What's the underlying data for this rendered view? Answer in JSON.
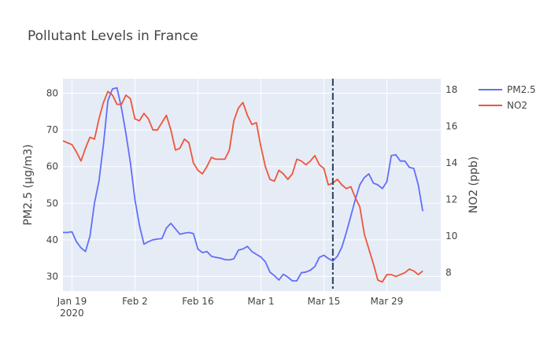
{
  "chart_data": {
    "type": "line",
    "title": "Pollutant Levels in France",
    "x_year_label": "2020",
    "x_ticks": [
      {
        "date": "2020-01-19",
        "label": "Jan 19"
      },
      {
        "date": "2020-02-02",
        "label": "Feb 2"
      },
      {
        "date": "2020-02-16",
        "label": "Feb 16"
      },
      {
        "date": "2020-03-01",
        "label": "Mar 1"
      },
      {
        "date": "2020-03-15",
        "label": "Mar 15"
      },
      {
        "date": "2020-03-29",
        "label": "Mar 29"
      }
    ],
    "x_range": [
      "2020-01-17",
      "2020-04-10"
    ],
    "y_left": {
      "label": "PM2.5 (μg/m3)",
      "range": [
        26,
        84
      ],
      "ticks": [
        30,
        40,
        50,
        60,
        70,
        80
      ]
    },
    "y_right": {
      "label": "NO2 (ppb)",
      "range": [
        7,
        18.6
      ],
      "ticks": [
        8,
        10,
        12,
        14,
        16,
        18
      ]
    },
    "vline": {
      "date": "2020-03-17",
      "style": "dashdot",
      "color": "#2a3f5f"
    },
    "grid": true,
    "legend_position": "top-right",
    "series": [
      {
        "name": "PM2.5",
        "axis": "left",
        "color": "#636efa",
        "x": [
          "2020-01-17",
          "2020-01-18",
          "2020-01-19",
          "2020-01-20",
          "2020-01-21",
          "2020-01-22",
          "2020-01-23",
          "2020-01-24",
          "2020-01-25",
          "2020-01-26",
          "2020-01-27",
          "2020-01-28",
          "2020-01-29",
          "2020-01-30",
          "2020-01-31",
          "2020-02-01",
          "2020-02-02",
          "2020-02-03",
          "2020-02-04",
          "2020-02-05",
          "2020-02-06",
          "2020-02-07",
          "2020-02-08",
          "2020-02-09",
          "2020-02-10",
          "2020-02-11",
          "2020-02-12",
          "2020-02-13",
          "2020-02-14",
          "2020-02-15",
          "2020-02-16",
          "2020-02-17",
          "2020-02-18",
          "2020-02-19",
          "2020-02-20",
          "2020-02-21",
          "2020-02-22",
          "2020-02-23",
          "2020-02-24",
          "2020-02-25",
          "2020-02-26",
          "2020-02-27",
          "2020-02-28",
          "2020-02-29",
          "2020-03-01",
          "2020-03-02",
          "2020-03-03",
          "2020-03-04",
          "2020-03-05",
          "2020-03-06",
          "2020-03-07",
          "2020-03-08",
          "2020-03-09",
          "2020-03-10",
          "2020-03-11",
          "2020-03-12",
          "2020-03-13",
          "2020-03-14",
          "2020-03-15",
          "2020-03-16",
          "2020-03-17",
          "2020-03-18",
          "2020-03-19",
          "2020-03-20",
          "2020-03-21",
          "2020-03-22",
          "2020-03-23",
          "2020-03-24",
          "2020-03-25",
          "2020-03-26",
          "2020-03-27",
          "2020-03-28",
          "2020-03-29",
          "2020-03-30",
          "2020-03-31",
          "2020-04-01",
          "2020-04-02",
          "2020-04-03",
          "2020-04-04",
          "2020-04-05",
          "2020-04-06"
        ],
        "values": [
          42,
          42,
          42.2,
          39.5,
          37.8,
          36.8,
          41,
          50,
          56,
          66,
          78,
          81.2,
          81.5,
          76,
          69,
          61,
          51,
          44,
          38.8,
          39.5,
          40,
          40.2,
          40.3,
          43.2,
          44.5,
          43,
          41.5,
          41.8,
          42,
          41.7,
          37.5,
          36.5,
          36.8,
          35.5,
          35.2,
          35,
          34.6,
          34.5,
          34.8,
          37.2,
          37.5,
          38.2,
          36.8,
          36,
          35.3,
          34,
          31.2,
          30.2,
          29,
          30.6,
          29.8,
          28.8,
          28.8,
          31,
          31.2,
          31.7,
          32.7,
          35.2,
          35.8,
          34.9,
          34.2,
          35.5,
          38,
          42,
          46.5,
          51,
          55,
          57,
          58,
          55.5,
          55,
          54,
          55.8,
          63,
          63.2,
          61.5,
          61.5,
          59.8,
          59.5,
          55,
          47.8
        ]
      },
      {
        "name": "NO2",
        "axis": "right",
        "color": "#ef553b",
        "x": [
          "2020-01-17",
          "2020-01-18",
          "2020-01-19",
          "2020-01-20",
          "2020-01-21",
          "2020-01-22",
          "2020-01-23",
          "2020-01-24",
          "2020-01-25",
          "2020-01-26",
          "2020-01-27",
          "2020-01-28",
          "2020-01-29",
          "2020-01-30",
          "2020-01-31",
          "2020-02-01",
          "2020-02-02",
          "2020-02-03",
          "2020-02-04",
          "2020-02-05",
          "2020-02-06",
          "2020-02-07",
          "2020-02-08",
          "2020-02-09",
          "2020-02-10",
          "2020-02-11",
          "2020-02-12",
          "2020-02-13",
          "2020-02-14",
          "2020-02-15",
          "2020-02-16",
          "2020-02-17",
          "2020-02-18",
          "2020-02-19",
          "2020-02-20",
          "2020-02-21",
          "2020-02-22",
          "2020-02-23",
          "2020-02-24",
          "2020-02-25",
          "2020-02-26",
          "2020-02-27",
          "2020-02-28",
          "2020-02-29",
          "2020-03-01",
          "2020-03-02",
          "2020-03-03",
          "2020-03-04",
          "2020-03-05",
          "2020-03-06",
          "2020-03-07",
          "2020-03-08",
          "2020-03-09",
          "2020-03-10",
          "2020-03-11",
          "2020-03-12",
          "2020-03-13",
          "2020-03-14",
          "2020-03-15",
          "2020-03-16",
          "2020-03-17",
          "2020-03-18",
          "2020-03-19",
          "2020-03-20",
          "2020-03-21",
          "2020-03-22",
          "2020-03-23",
          "2020-03-24",
          "2020-03-25",
          "2020-03-26",
          "2020-03-27",
          "2020-03-28",
          "2020-03-29",
          "2020-03-30",
          "2020-03-31",
          "2020-04-01",
          "2020-04-02",
          "2020-04-03",
          "2020-04-04",
          "2020-04-05",
          "2020-04-06"
        ],
        "values": [
          15.2,
          15.1,
          15,
          14.6,
          14.1,
          14.8,
          15.4,
          15.3,
          16.4,
          17.3,
          17.9,
          17.7,
          17.2,
          17.2,
          17.7,
          17.5,
          16.4,
          16.3,
          16.7,
          16.4,
          15.8,
          15.8,
          16.2,
          16.6,
          15.8,
          14.7,
          14.8,
          15.3,
          15.1,
          14.0,
          13.6,
          13.4,
          13.8,
          14.3,
          14.2,
          14.2,
          14.2,
          14.7,
          16.3,
          17.0,
          17.3,
          16.6,
          16.1,
          16.2,
          14.9,
          13.8,
          13.1,
          13.0,
          13.6,
          13.4,
          13.1,
          13.4,
          14.2,
          14.1,
          13.9,
          14.1,
          14.4,
          13.9,
          13.7,
          12.8,
          12.9,
          13.1,
          12.8,
          12.6,
          12.7,
          12.1,
          11.6,
          10.1,
          9.3,
          8.5,
          7.6,
          7.5,
          7.9,
          7.9,
          7.8,
          7.9,
          8.0,
          8.2,
          8.1,
          7.9,
          8.1
        ]
      }
    ]
  }
}
